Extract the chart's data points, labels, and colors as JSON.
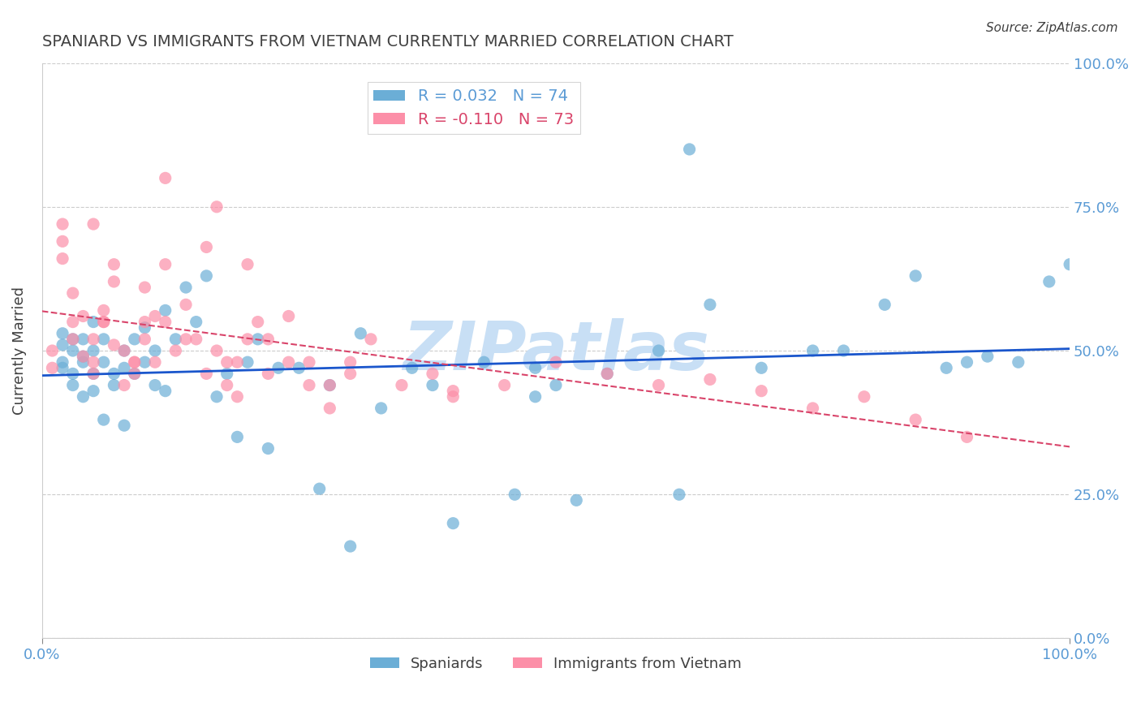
{
  "title": "SPANIARD VS IMMIGRANTS FROM VIETNAM CURRENTLY MARRIED CORRELATION CHART",
  "source": "Source: ZipAtlas.com",
  "ylabel": "Currently Married",
  "ytick_labels": [
    "0.0%",
    "25.0%",
    "50.0%",
    "75.0%",
    "100.0%"
  ],
  "ytick_values": [
    0.0,
    0.25,
    0.5,
    0.75,
    1.0
  ],
  "xlim": [
    0.0,
    1.0
  ],
  "ylim": [
    0.0,
    1.0
  ],
  "spaniards_R": 0.032,
  "spaniards_N": 74,
  "vietnam_R": -0.11,
  "vietnam_N": 73,
  "blue_color": "#6baed6",
  "pink_color": "#fc8fa8",
  "blue_line_color": "#1a56cc",
  "pink_line_color": "#d9446a",
  "axis_color": "#5b9bd5",
  "title_color": "#404040",
  "watermark_color": "#c8dff5",
  "watermark_text": "ZIPatlas",
  "legend_label_blue": "R = 0.032   N = 74",
  "legend_label_pink": "R = -0.110   N = 73",
  "legend_label_blue_series": "Spaniards",
  "legend_label_pink_series": "Immigrants from Vietnam",
  "spaniards_x": [
    0.02,
    0.02,
    0.02,
    0.02,
    0.03,
    0.03,
    0.03,
    0.03,
    0.04,
    0.04,
    0.04,
    0.04,
    0.05,
    0.05,
    0.05,
    0.05,
    0.06,
    0.06,
    0.06,
    0.07,
    0.07,
    0.08,
    0.08,
    0.08,
    0.09,
    0.09,
    0.1,
    0.1,
    0.11,
    0.11,
    0.12,
    0.12,
    0.13,
    0.14,
    0.15,
    0.16,
    0.17,
    0.18,
    0.19,
    0.2,
    0.21,
    0.22,
    0.23,
    0.25,
    0.27,
    0.28,
    0.3,
    0.31,
    0.33,
    0.36,
    0.38,
    0.4,
    0.43,
    0.46,
    0.48,
    0.5,
    0.52,
    0.55,
    0.6,
    0.62,
    0.65,
    0.7,
    0.75,
    0.82,
    0.85,
    0.88,
    0.9,
    0.92,
    0.95,
    0.98,
    1.0,
    0.63,
    0.48,
    0.78
  ],
  "spaniards_y": [
    0.47,
    0.51,
    0.53,
    0.48,
    0.5,
    0.44,
    0.46,
    0.52,
    0.42,
    0.48,
    0.49,
    0.52,
    0.46,
    0.5,
    0.55,
    0.43,
    0.52,
    0.48,
    0.38,
    0.44,
    0.46,
    0.5,
    0.47,
    0.37,
    0.52,
    0.46,
    0.54,
    0.48,
    0.5,
    0.44,
    0.57,
    0.43,
    0.52,
    0.61,
    0.55,
    0.63,
    0.42,
    0.46,
    0.35,
    0.48,
    0.52,
    0.33,
    0.47,
    0.47,
    0.26,
    0.44,
    0.16,
    0.53,
    0.4,
    0.47,
    0.44,
    0.2,
    0.48,
    0.25,
    0.47,
    0.44,
    0.24,
    0.46,
    0.5,
    0.25,
    0.58,
    0.47,
    0.5,
    0.58,
    0.63,
    0.47,
    0.48,
    0.49,
    0.48,
    0.62,
    0.65,
    0.85,
    0.42,
    0.5
  ],
  "vietnam_x": [
    0.01,
    0.01,
    0.02,
    0.02,
    0.02,
    0.03,
    0.03,
    0.03,
    0.04,
    0.04,
    0.05,
    0.05,
    0.05,
    0.06,
    0.06,
    0.07,
    0.07,
    0.08,
    0.08,
    0.09,
    0.09,
    0.1,
    0.1,
    0.11,
    0.12,
    0.12,
    0.13,
    0.14,
    0.15,
    0.16,
    0.17,
    0.18,
    0.19,
    0.2,
    0.21,
    0.22,
    0.24,
    0.26,
    0.28,
    0.3,
    0.32,
    0.35,
    0.38,
    0.4,
    0.45,
    0.5,
    0.55,
    0.6,
    0.65,
    0.7,
    0.75,
    0.8,
    0.85,
    0.9,
    0.22,
    0.24,
    0.12,
    0.14,
    0.16,
    0.17,
    0.09,
    0.11,
    0.2,
    0.05,
    0.06,
    0.07,
    0.26,
    0.28,
    0.3,
    0.18,
    0.19,
    0.1,
    0.4
  ],
  "vietnam_y": [
    0.5,
    0.47,
    0.69,
    0.72,
    0.66,
    0.55,
    0.6,
    0.52,
    0.49,
    0.56,
    0.48,
    0.52,
    0.46,
    0.55,
    0.57,
    0.51,
    0.65,
    0.44,
    0.5,
    0.46,
    0.48,
    0.61,
    0.52,
    0.48,
    0.55,
    0.65,
    0.5,
    0.58,
    0.52,
    0.46,
    0.5,
    0.44,
    0.48,
    0.52,
    0.55,
    0.46,
    0.56,
    0.48,
    0.44,
    0.48,
    0.52,
    0.44,
    0.46,
    0.43,
    0.44,
    0.48,
    0.46,
    0.44,
    0.45,
    0.43,
    0.4,
    0.42,
    0.38,
    0.35,
    0.52,
    0.48,
    0.8,
    0.52,
    0.68,
    0.75,
    0.48,
    0.56,
    0.65,
    0.72,
    0.55,
    0.62,
    0.44,
    0.4,
    0.46,
    0.48,
    0.42,
    0.55,
    0.42
  ]
}
